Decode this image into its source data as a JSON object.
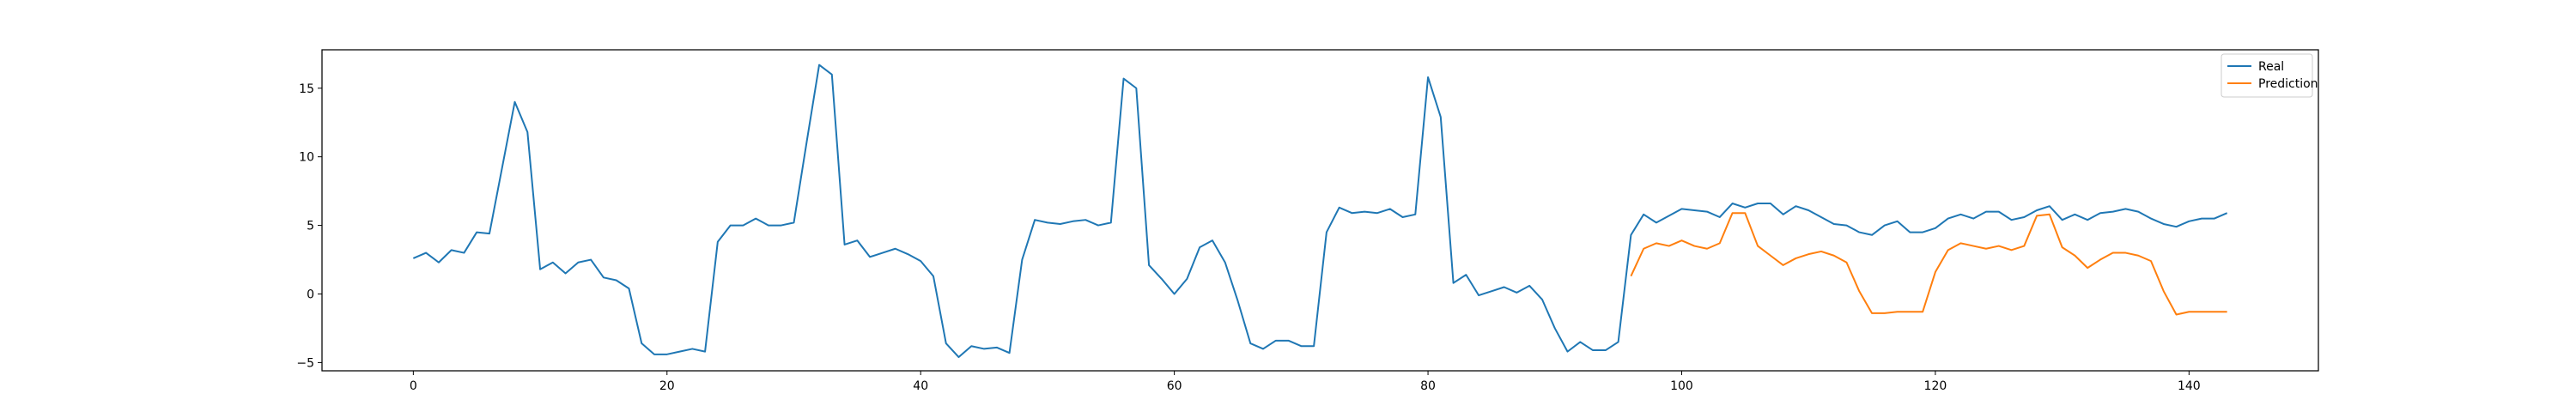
{
  "chart_data": {
    "type": "line",
    "title": "",
    "xlabel": "",
    "ylabel": "",
    "xlim": [
      -7.2,
      150.2
    ],
    "ylim": [
      -5.6,
      17.8
    ],
    "x_ticks": [
      0,
      20,
      40,
      60,
      80,
      100,
      120,
      140
    ],
    "y_ticks": [
      -5,
      0,
      5,
      10,
      15
    ],
    "grid": false,
    "legend": {
      "placement": "top-right",
      "entries": [
        "Real",
        "Prediction"
      ]
    },
    "series": [
      {
        "name": "Real",
        "color": "#1f77b4",
        "x_start": 0,
        "values": [
          2.6,
          3.0,
          2.3,
          3.2,
          3.0,
          4.5,
          4.4,
          9.2,
          14.0,
          11.8,
          1.8,
          2.3,
          1.5,
          2.3,
          2.5,
          1.2,
          1.0,
          0.4,
          -3.6,
          -4.4,
          -4.4,
          -4.2,
          -4.0,
          -4.2,
          3.8,
          5.0,
          5.0,
          5.5,
          5.0,
          5.0,
          5.2,
          11.0,
          16.7,
          16.0,
          3.6,
          3.9,
          2.7,
          3.0,
          3.3,
          2.9,
          2.4,
          1.3,
          -3.6,
          -4.6,
          -3.8,
          -4.0,
          -3.9,
          -4.3,
          2.5,
          5.4,
          5.2,
          5.1,
          5.3,
          5.4,
          5.0,
          5.2,
          15.7,
          15.0,
          2.1,
          1.1,
          0.0,
          1.1,
          3.4,
          3.9,
          2.3,
          -0.5,
          -3.6,
          -4.0,
          -3.4,
          -3.4,
          -3.8,
          -3.8,
          4.5,
          6.3,
          5.9,
          6.0,
          5.9,
          6.2,
          5.6,
          5.8,
          15.8,
          12.9,
          0.8,
          1.4,
          -0.1,
          0.2,
          0.5,
          0.1,
          0.6,
          -0.4,
          -2.5,
          -4.2,
          -3.5,
          -4.1,
          -4.1,
          -3.5,
          4.3,
          5.8,
          5.2,
          5.7,
          6.2,
          6.1,
          6.0,
          5.6,
          6.6,
          6.3,
          6.6,
          6.6,
          5.8,
          6.4,
          6.1,
          5.6,
          5.1,
          5.0,
          4.5,
          4.3,
          5.0,
          5.3,
          4.5,
          4.5,
          4.8,
          5.5,
          5.8,
          5.5,
          6.0,
          6.0,
          5.4,
          5.6,
          6.1,
          6.4,
          5.4,
          5.8,
          5.4,
          5.9,
          6.0,
          6.2,
          6.0,
          5.5,
          5.1,
          4.9,
          5.3,
          5.5,
          5.5,
          5.9
        ]
      },
      {
        "name": "Prediction",
        "color": "#ff7f0e",
        "x_start": 96,
        "values": [
          1.3,
          3.3,
          3.7,
          3.5,
          3.9,
          3.5,
          3.3,
          3.7,
          5.9,
          5.9,
          3.5,
          2.8,
          2.1,
          2.6,
          2.9,
          3.1,
          2.8,
          2.3,
          0.2,
          -1.4,
          -1.4,
          -1.3,
          -1.3,
          -1.3,
          1.6,
          3.2,
          3.7,
          3.5,
          3.3,
          3.5,
          3.2,
          3.5,
          5.7,
          5.8,
          3.4,
          2.8,
          1.9,
          2.5,
          3.0,
          3.0,
          2.8,
          2.4,
          0.2,
          -1.5,
          -1.3,
          -1.3,
          -1.3,
          -1.3
        ]
      }
    ]
  }
}
